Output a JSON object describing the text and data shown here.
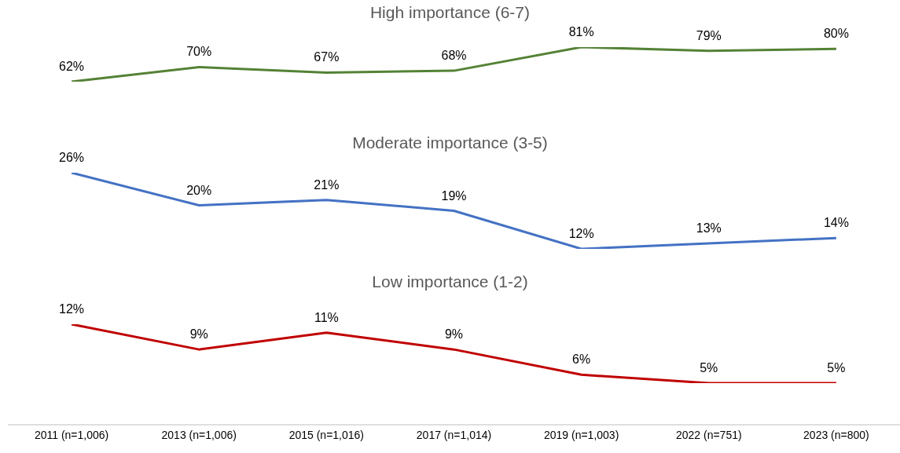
{
  "chart_data": [
    {
      "type": "line",
      "title": "High importance (6-7)",
      "series": [
        {
          "color": "#548235",
          "values": [
            62,
            70,
            67,
            68,
            81,
            79,
            80
          ],
          "value_labels": [
            "62%",
            "70%",
            "67%",
            "68%",
            "81%",
            "79%",
            "80%"
          ]
        }
      ],
      "tick_labels": false,
      "marker": "none"
    },
    {
      "type": "line",
      "title": "Moderate importance (3-5)",
      "series": [
        {
          "color": "#4472c4",
          "values": [
            26,
            20,
            21,
            19,
            12,
            13,
            14
          ],
          "value_labels": [
            "26%",
            "20%",
            "21%",
            "19%",
            "12%",
            "13%",
            "14%"
          ]
        }
      ],
      "tick_labels": false,
      "marker": "none"
    },
    {
      "type": "line",
      "title": "Low importance (1-2)",
      "categories": [
        "2011 (n=1,006)",
        "2013 (n=1,006)",
        "2015 (n=1,016)",
        "2017 (n=1,014)",
        "2019 (n=1,003)",
        "2022 (n=751)",
        "2023 (n=800)"
      ],
      "series": [
        {
          "color": "#c00000",
          "values": [
            12,
            9,
            11,
            9,
            6,
            5,
            5
          ],
          "value_labels": [
            "12%",
            "9%",
            "11%",
            "9%",
            "6%",
            "5%",
            "5%"
          ]
        }
      ],
      "tick_labels": "x",
      "marker": "none"
    }
  ]
}
